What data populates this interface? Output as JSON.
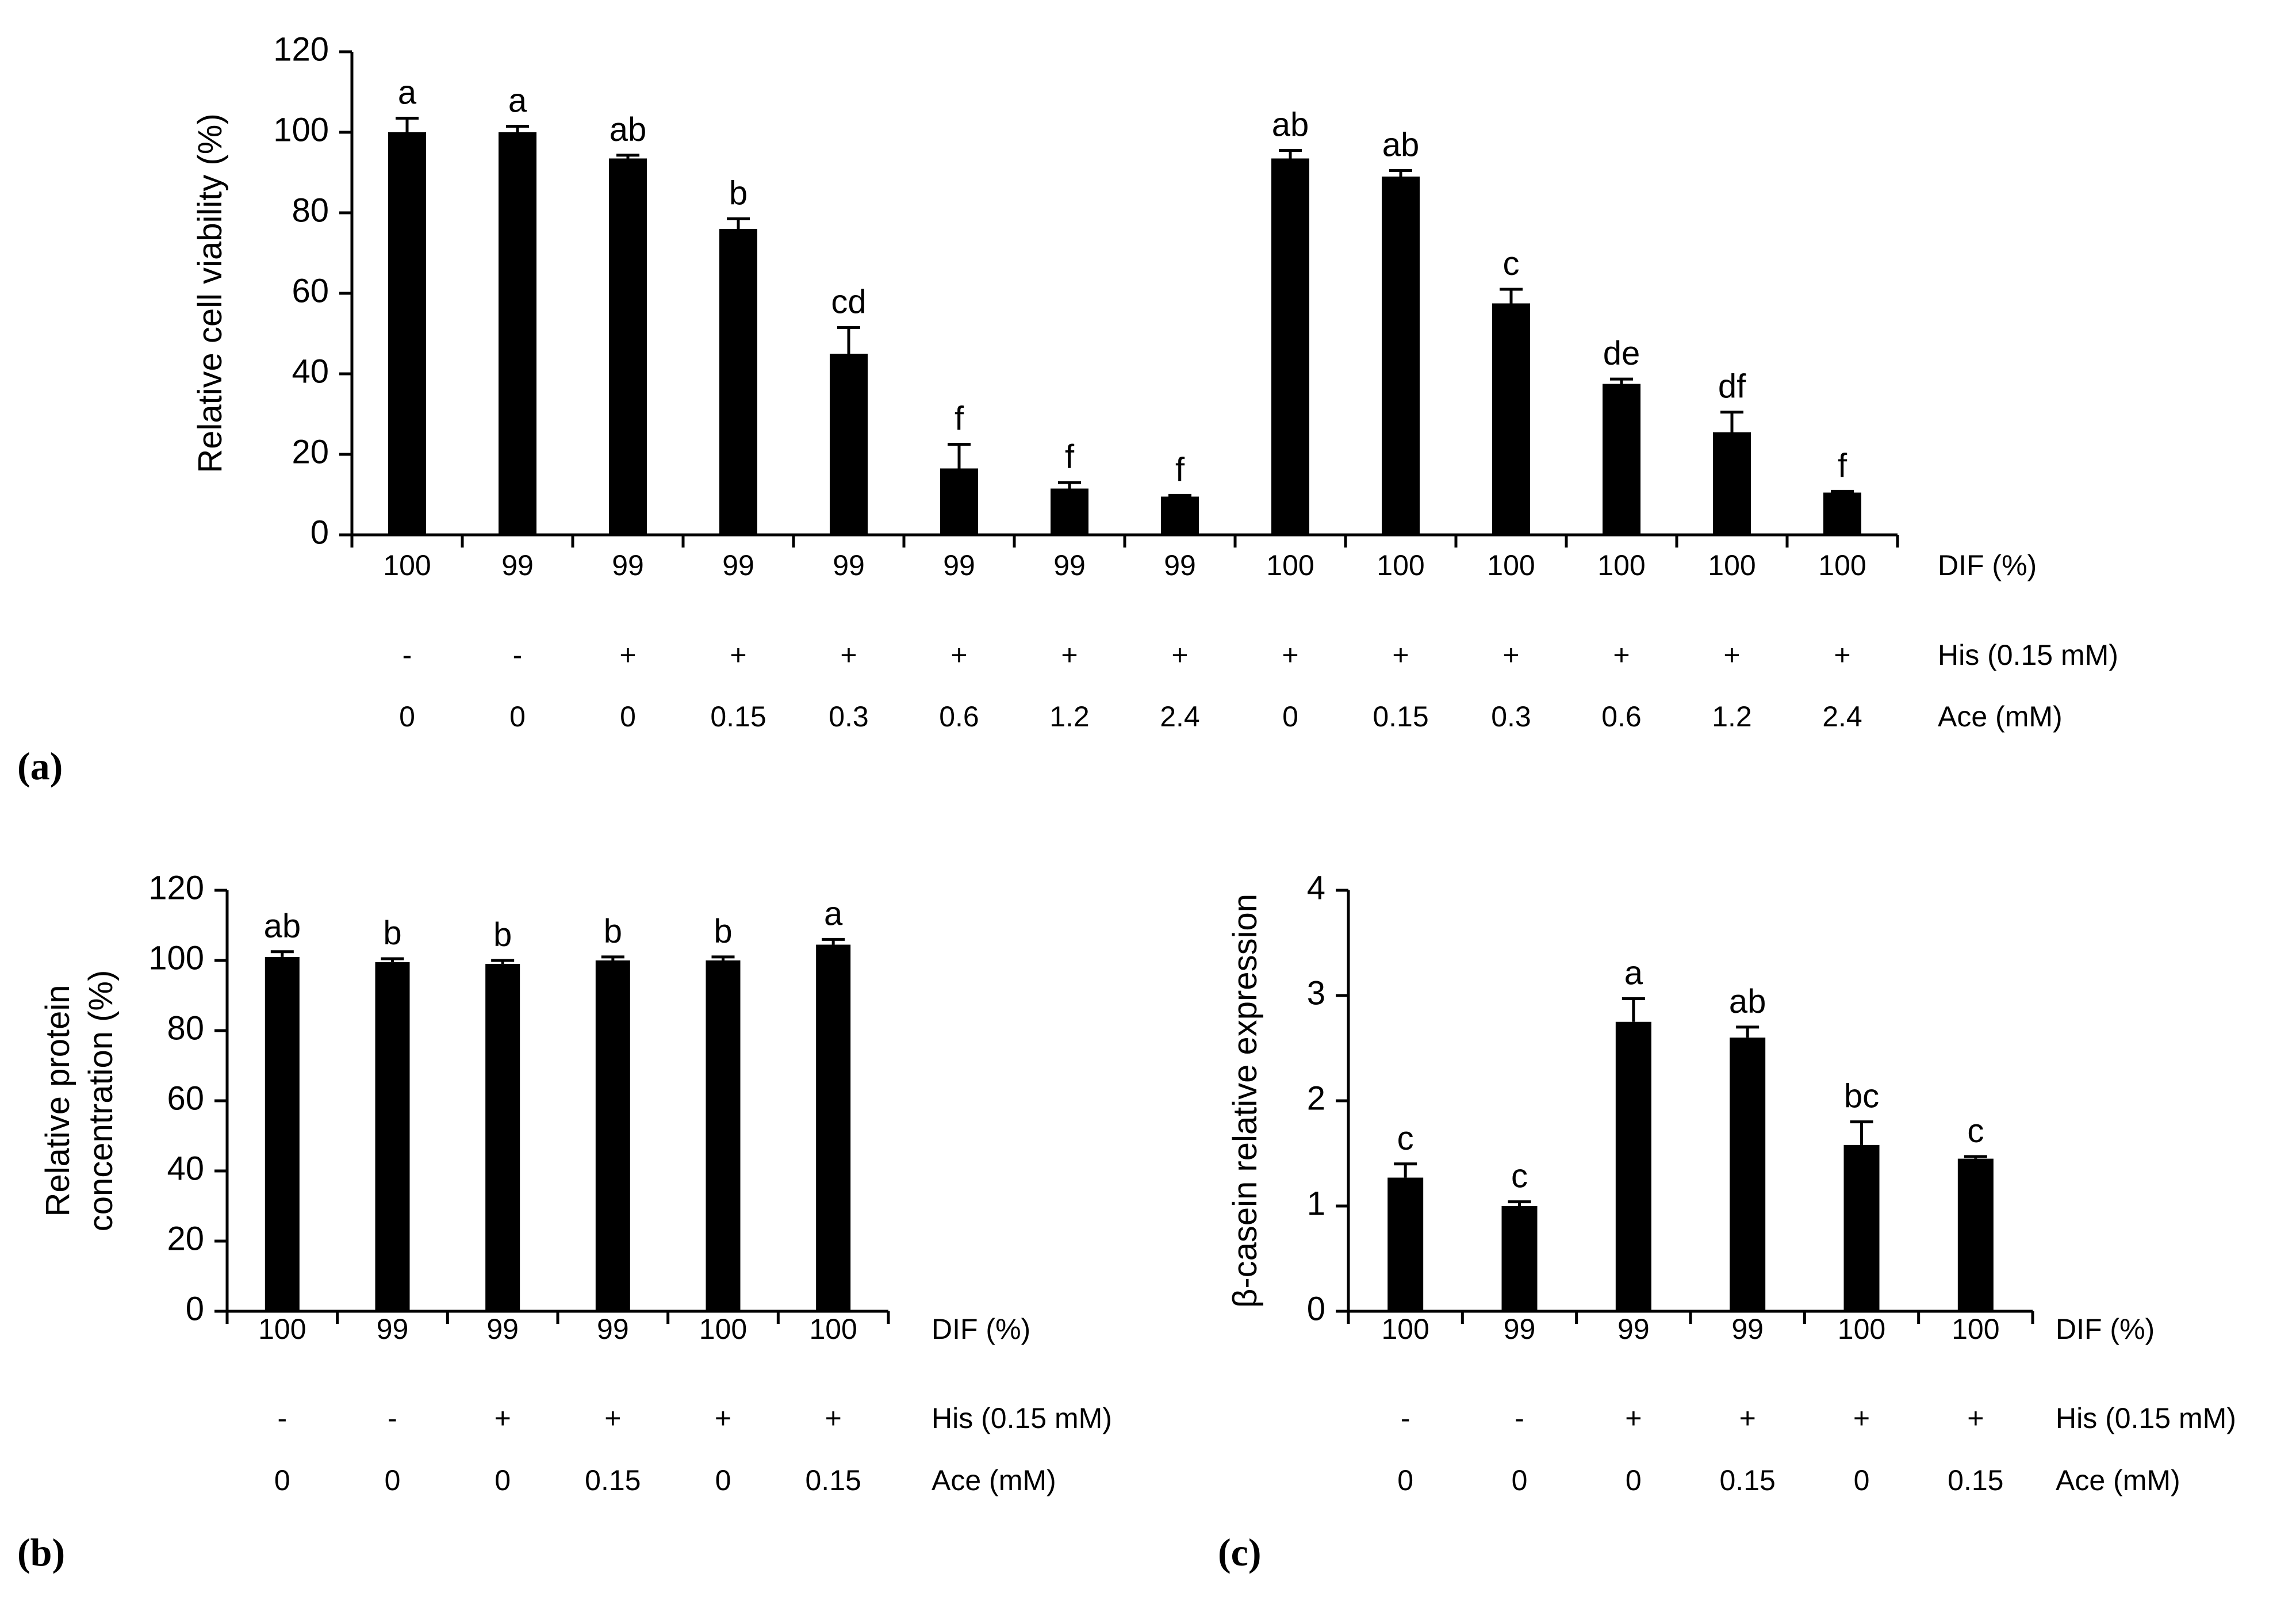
{
  "chart_data": [
    {
      "id": "a",
      "type": "bar",
      "panel_label": "(a)",
      "ylabel": "Relative cell viability (%)",
      "ylim": [
        0,
        120
      ],
      "yticks": [
        0,
        20,
        40,
        60,
        80,
        100,
        120
      ],
      "values": [
        100,
        100,
        93.5,
        76,
        45,
        16.5,
        11.5,
        9.5,
        93.5,
        89,
        57.5,
        37.5,
        25.5,
        10.5
      ],
      "errors": [
        3.5,
        1.5,
        0.8,
        2.5,
        6.5,
        6,
        1.5,
        0.3,
        2,
        1.5,
        3.5,
        1.2,
        5,
        0.3
      ],
      "letters": [
        "a",
        "a",
        "ab",
        "b",
        "cd",
        "f",
        "f",
        "f",
        "ab",
        "ab",
        "c",
        "de",
        "df",
        "f"
      ],
      "rows": [
        {
          "name": "DIF (%)",
          "values": [
            "100",
            "99",
            "99",
            "99",
            "99",
            "99",
            "99",
            "99",
            "100",
            "100",
            "100",
            "100",
            "100",
            "100"
          ]
        },
        {
          "name": "His (0.15 mM)",
          "values": [
            "-",
            "-",
            "+",
            "+",
            "+",
            "+",
            "+",
            "+",
            "+",
            "+",
            "+",
            "+",
            "+",
            "+"
          ]
        },
        {
          "name": "Ace (mM)",
          "values": [
            "0",
            "0",
            "0",
            "0.15",
            "0.3",
            "0.6",
            "1.2",
            "2.4",
            "0",
            "0.15",
            "0.3",
            "0.6",
            "1.2",
            "2.4"
          ]
        }
      ]
    },
    {
      "id": "b",
      "type": "bar",
      "panel_label": "(b)",
      "ylabel_lines": [
        "Relative protein",
        "concentration (%)"
      ],
      "ylim": [
        0,
        120
      ],
      "yticks": [
        0,
        20,
        40,
        60,
        80,
        100,
        120
      ],
      "values": [
        101,
        99.5,
        99,
        100,
        100,
        104.5
      ],
      "errors": [
        1.5,
        1,
        1,
        1,
        1,
        1.5
      ],
      "letters": [
        "ab",
        "b",
        "b",
        "b",
        "b",
        "a"
      ],
      "rows": [
        {
          "name": "DIF (%)",
          "values": [
            "100",
            "99",
            "99",
            "99",
            "100",
            "100"
          ]
        },
        {
          "name": "His (0.15 mM)",
          "values": [
            "-",
            "-",
            "+",
            "+",
            "+",
            "+"
          ]
        },
        {
          "name": "Ace (mM)",
          "values": [
            "0",
            "0",
            "0",
            "0.15",
            "0",
            "0.15"
          ]
        }
      ]
    },
    {
      "id": "c",
      "type": "bar",
      "panel_label": "(c)",
      "ylabel": "β-casein relative expression",
      "ylim": [
        0,
        4
      ],
      "yticks": [
        0,
        1,
        2,
        3,
        4
      ],
      "values": [
        1.27,
        1.0,
        2.75,
        2.6,
        1.58,
        1.45
      ],
      "errors": [
        0.13,
        0.04,
        0.22,
        0.1,
        0.22,
        0.02
      ],
      "letters": [
        "c",
        "c",
        "a",
        "ab",
        "bc",
        "c"
      ],
      "rows": [
        {
          "name": "DIF (%)",
          "values": [
            "100",
            "99",
            "99",
            "99",
            "100",
            "100"
          ]
        },
        {
          "name": "His (0.15 mM)",
          "values": [
            "-",
            "-",
            "+",
            "+",
            "+",
            "+"
          ]
        },
        {
          "name": "Ace (mM)",
          "values": [
            "0",
            "0",
            "0",
            "0.15",
            "0",
            "0.15"
          ]
        }
      ]
    }
  ]
}
